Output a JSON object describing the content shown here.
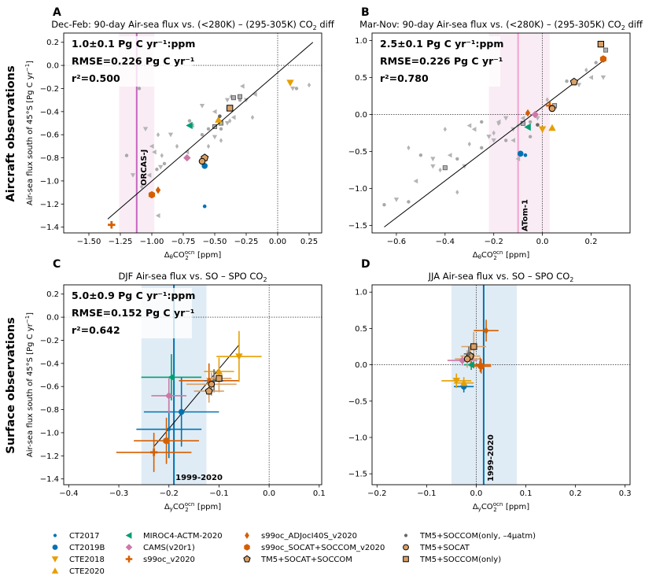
{
  "colors": {
    "black": "#000000",
    "gray": "#a0a0a0",
    "darkgray": "#666666",
    "blue": "#0072b2",
    "orange": "#e69f00",
    "green": "#009e73",
    "pink": "#cc79a7",
    "vermillion": "#d55e00",
    "tan": "#d9a066",
    "lightblue": "#d5e6f2",
    "lightpink": "#f6e4f0",
    "magenta_line": "#c765c0",
    "pink_line": "#f5a2d0"
  },
  "row_labels": [
    "Aircraft observations",
    "Surface observations"
  ],
  "chart_data": [
    {
      "id": "A",
      "type": "scatter",
      "letter": "A",
      "title": "Dec-Feb: 90-day Air-sea flux vs. (<280K) – (295-305K) CO",
      "title_sub": "2",
      "title_tail": " diff",
      "xlabel": "Δ",
      "ylabel": "Air-sea flux south of 45°S [Pg C yr",
      "xlim": [
        -1.7,
        0.35
      ],
      "ylim": [
        -1.45,
        0.28
      ],
      "xticks": [
        -1.5,
        -1.25,
        -1.0,
        -0.75,
        -0.5,
        -0.25,
        0.0,
        0.25
      ],
      "xticklabels": [
        "−1.50",
        "−1.25",
        "−1.00",
        "−0.75",
        "−0.50",
        "−0.25",
        "0.00",
        "0.25"
      ],
      "yticks": [
        -1.4,
        -1.2,
        -1.0,
        -0.8,
        -0.6,
        -0.4,
        -0.2,
        0.0,
        0.2
      ],
      "yticklabels": [
        "−1.4",
        "−1.2",
        "−1.0",
        "−0.8",
        "−0.6",
        "−0.4",
        "−0.2",
        "0.0",
        "0.2"
      ],
      "stats": [
        "1.0±0.1 Pg C yr⁻¹:ppm",
        "RMSE=0.226 Pg C yr⁻¹",
        "r²=0.500"
      ],
      "obs_line": {
        "x": -1.12,
        "band": [
          -1.26,
          -0.98
        ],
        "label": "ORCAS-J"
      },
      "fit": [
        [
          -1.35,
          -1.33
        ],
        [
          0.28,
          0.2
        ]
      ],
      "gray_points": [
        [
          -1.1,
          -0.2
        ],
        [
          -1.05,
          -0.55
        ],
        [
          -0.95,
          -0.6
        ],
        [
          -0.98,
          -0.75
        ],
        [
          -0.9,
          -0.85
        ],
        [
          -0.85,
          -0.6
        ],
        [
          -0.8,
          -0.7
        ],
        [
          -0.72,
          -0.75
        ],
        [
          -0.7,
          -0.48
        ],
        [
          -0.6,
          -0.35
        ],
        [
          -0.55,
          -0.7
        ],
        [
          -0.5,
          -0.4
        ],
        [
          -0.45,
          -0.55
        ],
        [
          -0.4,
          -0.5
        ],
        [
          -0.38,
          -0.48
        ],
        [
          -0.35,
          -0.45
        ],
        [
          -0.3,
          -0.3
        ],
        [
          -0.25,
          -0.3
        ],
        [
          -0.2,
          -0.45
        ],
        [
          -0.18,
          -0.25
        ],
        [
          -1.2,
          -0.78
        ],
        [
          -1.15,
          -0.95
        ],
        [
          -1.08,
          -1.05
        ],
        [
          -1.02,
          -0.95
        ],
        [
          -0.96,
          -0.9
        ],
        [
          -0.93,
          -0.88
        ],
        [
          -0.92,
          -0.78
        ],
        [
          -0.68,
          -0.52
        ],
        [
          -0.6,
          -0.6
        ],
        [
          -0.5,
          -0.62
        ],
        [
          -0.45,
          -0.65
        ],
        [
          -0.28,
          -0.18
        ],
        [
          0.15,
          -0.2
        ],
        [
          0.12,
          -0.2
        ],
        [
          0.25,
          -0.17
        ],
        [
          -1.0,
          -0.7
        ],
        [
          -0.55,
          -0.55
        ],
        [
          -0.4,
          -0.3
        ],
        [
          -0.37,
          -0.27
        ],
        [
          -0.95,
          -1.3
        ]
      ],
      "gray_squares": [
        [
          -0.35,
          -0.28
        ],
        [
          -0.3,
          -0.27
        ],
        [
          -0.45,
          -0.5
        ],
        [
          -0.5,
          -0.53
        ]
      ],
      "colored": [
        {
          "x": -1.32,
          "y": -1.38,
          "marker": "plus",
          "color": "vermillion"
        },
        {
          "x": -1.0,
          "y": -1.12,
          "marker": "hexagon",
          "color": "vermillion"
        },
        {
          "x": -0.95,
          "y": -1.08,
          "marker": "diamond_small",
          "color": "vermillion"
        },
        {
          "x": -0.58,
          "y": -0.87,
          "marker": "circle",
          "color": "blue"
        },
        {
          "x": -0.58,
          "y": -1.22,
          "marker": "dot",
          "color": "blue"
        },
        {
          "x": -0.72,
          "y": -0.8,
          "marker": "diamond",
          "color": "pink"
        },
        {
          "x": -0.7,
          "y": -0.52,
          "marker": "triangle_left",
          "color": "green"
        },
        {
          "x": -0.47,
          "y": -0.47,
          "marker": "triangle_up",
          "color": "orange"
        },
        {
          "x": 0.1,
          "y": -0.15,
          "marker": "triangle_down",
          "color": "orange"
        },
        {
          "x": -0.58,
          "y": -0.8,
          "marker": "pentagon",
          "color": "tan"
        },
        {
          "x": -0.6,
          "y": -0.83,
          "marker": "circle_outlined",
          "color": "tan"
        },
        {
          "x": -0.38,
          "y": -0.37,
          "marker": "square",
          "color": "tan"
        },
        {
          "x": -0.46,
          "y": -0.44,
          "marker": "dot",
          "color": "darkgray"
        }
      ]
    },
    {
      "id": "B",
      "type": "scatter",
      "letter": "B",
      "title": "Mar-Nov: 90-day Air-sea flux vs. (<280K) – (295-305K) CO",
      "title_sub": "2",
      "title_tail": " diff",
      "xlabel": "Δ",
      "ylabel": "",
      "xlim": [
        -0.7,
        0.36
      ],
      "ylim": [
        -1.6,
        1.1
      ],
      "xticks": [
        -0.6,
        -0.4,
        -0.2,
        0.0,
        0.2
      ],
      "xticklabels": [
        "−0.6",
        "−0.4",
        "−0.2",
        "0.0",
        "0.2"
      ],
      "yticks": [
        -1.5,
        -1.0,
        -0.5,
        0.0,
        0.5,
        1.0
      ],
      "yticklabels": [
        "−1.5",
        "−1.0",
        "−0.5",
        "0.0",
        "0.5",
        "1.0"
      ],
      "stats": [
        "2.5±0.1 Pg C yr⁻¹:ppm",
        "RMSE=0.226 Pg C yr⁻¹",
        "r²=0.780"
      ],
      "obs_line": {
        "x": -0.1,
        "band": [
          -0.22,
          0.03
        ],
        "label": "ATom-1"
      },
      "fit": [
        [
          -0.65,
          -1.52
        ],
        [
          0.26,
          0.75
        ]
      ],
      "gray_points": [
        [
          -0.65,
          -1.22
        ],
        [
          -0.6,
          -1.15
        ],
        [
          -0.55,
          -0.45
        ],
        [
          -0.52,
          -0.9
        ],
        [
          -0.5,
          -0.55
        ],
        [
          -0.45,
          -0.6
        ],
        [
          -0.42,
          -0.75
        ],
        [
          -0.38,
          -0.55
        ],
        [
          -0.35,
          -0.6
        ],
        [
          -0.32,
          -0.7
        ],
        [
          -0.3,
          -0.4
        ],
        [
          -0.28,
          -0.2
        ],
        [
          -0.25,
          -0.45
        ],
        [
          -0.22,
          -0.3
        ],
        [
          -0.2,
          -0.25
        ],
        [
          -0.18,
          -0.1
        ],
        [
          -0.15,
          -0.35
        ],
        [
          -0.12,
          -0.2
        ],
        [
          -0.1,
          -0.15
        ],
        [
          -0.08,
          -0.05
        ],
        [
          -0.05,
          -0.1
        ],
        [
          -0.02,
          -0.05
        ],
        [
          0.02,
          0.2
        ],
        [
          0.05,
          0.1
        ],
        [
          0.1,
          0.45
        ],
        [
          0.15,
          0.4
        ],
        [
          0.18,
          0.6
        ],
        [
          0.2,
          0.5
        ],
        [
          0.22,
          0.7
        ],
        [
          0.25,
          0.5
        ],
        [
          -0.4,
          -0.2
        ],
        [
          -0.3,
          -0.15
        ],
        [
          -0.25,
          -0.1
        ],
        [
          -0.15,
          -0.05
        ],
        [
          -0.18,
          -0.12
        ],
        [
          -0.12,
          -0.35
        ],
        [
          -0.05,
          -0.3
        ],
        [
          -0.2,
          -0.35
        ],
        [
          -0.35,
          -1.05
        ],
        [
          -0.1,
          -0.6
        ],
        [
          -0.55,
          -1.18
        ],
        [
          -0.45,
          -0.7
        ]
      ],
      "gray_squares": [
        [
          -0.08,
          -0.12
        ],
        [
          0.26,
          0.87
        ],
        [
          0.05,
          0.12
        ],
        [
          -0.4,
          -0.72
        ]
      ],
      "colored": [
        {
          "x": -0.09,
          "y": -0.53,
          "marker": "circle",
          "color": "blue"
        },
        {
          "x": -0.07,
          "y": -0.55,
          "marker": "dot",
          "color": "blue"
        },
        {
          "x": -0.06,
          "y": -0.17,
          "marker": "triangle_left",
          "color": "green"
        },
        {
          "x": -0.03,
          "y": 0.0,
          "marker": "diamond",
          "color": "pink"
        },
        {
          "x": -0.06,
          "y": 0.02,
          "marker": "diamond_small",
          "color": "vermillion"
        },
        {
          "x": 0.0,
          "y": -0.2,
          "marker": "triangle_down",
          "color": "orange"
        },
        {
          "x": 0.04,
          "y": -0.18,
          "marker": "triangle_up",
          "color": "orange"
        },
        {
          "x": 0.03,
          "y": 0.12,
          "marker": "plus",
          "color": "vermillion"
        },
        {
          "x": 0.25,
          "y": 0.75,
          "marker": "hexagon",
          "color": "vermillion"
        },
        {
          "x": 0.13,
          "y": 0.44,
          "marker": "pentagon",
          "color": "tan"
        },
        {
          "x": 0.04,
          "y": 0.08,
          "marker": "circle_outlined",
          "color": "tan"
        },
        {
          "x": 0.24,
          "y": 0.95,
          "marker": "square",
          "color": "tan"
        },
        {
          "x": -0.02,
          "y": -0.14,
          "marker": "dot",
          "color": "darkgray"
        }
      ]
    },
    {
      "id": "C",
      "type": "scatter",
      "letter": "C",
      "title": "DJF Air-sea flux vs. SO – SPO CO",
      "title_sub": "2",
      "title_tail": "",
      "xlabel": "Δ",
      "ylabel": "Air-sea flux south of 45°S [Pg C yr",
      "xlim": [
        -0.41,
        0.105
      ],
      "ylim": [
        -1.45,
        0.28
      ],
      "xticks": [
        -0.4,
        -0.3,
        -0.2,
        -0.1,
        0.0,
        0.1
      ],
      "xticklabels": [
        "−0.4",
        "−0.3",
        "−0.2",
        "−0.1",
        "0.0",
        "0.1"
      ],
      "yticks": [
        -1.4,
        -1.2,
        -1.0,
        -0.8,
        -0.6,
        -0.4,
        -0.2,
        0.0,
        0.2
      ],
      "yticklabels": [
        "−1.4",
        "−1.2",
        "−1.0",
        "−0.8",
        "−0.6",
        "−0.4",
        "−0.2",
        "0.0",
        "0.2"
      ],
      "stats": [
        "5.0±0.9 Pg C yr⁻¹:ppm",
        "RMSE=0.152 Pg C yr⁻¹",
        "r²=0.642"
      ],
      "obs_line": {
        "x": -0.19,
        "band": [
          -0.255,
          -0.125
        ],
        "label": "1999-2020"
      },
      "fit": [
        [
          -0.23,
          -1.12
        ],
        [
          -0.06,
          -0.24
        ]
      ],
      "colored": [
        {
          "x": -0.175,
          "y": -0.82,
          "marker": "circle",
          "color": "blue",
          "ex": 0.075,
          "ey": 0.3
        },
        {
          "x": -0.2,
          "y": -0.97,
          "marker": "dot",
          "color": "blue",
          "ex": 0.065,
          "ey": 0.25
        },
        {
          "x": -0.195,
          "y": -0.52,
          "marker": "triangle_left",
          "color": "green",
          "ex": 0.06,
          "ey": 0.2
        },
        {
          "x": -0.2,
          "y": -0.68,
          "marker": "diamond",
          "color": "pink",
          "ex": 0.035,
          "ey": 0.15
        },
        {
          "x": -0.205,
          "y": -1.07,
          "marker": "hexagon",
          "color": "vermillion",
          "ex": 0.065,
          "ey": 0.2
        },
        {
          "x": -0.23,
          "y": -1.17,
          "marker": "plus",
          "color": "vermillion",
          "ex": 0.075,
          "ey": 0.17
        },
        {
          "x": -0.12,
          "y": -0.55,
          "marker": "diamond_small",
          "color": "vermillion",
          "ex": 0.06,
          "ey": 0.15
        },
        {
          "x": -0.06,
          "y": -0.34,
          "marker": "triangle_down",
          "color": "orange",
          "ex": 0.045,
          "ey": 0.22
        },
        {
          "x": -0.1,
          "y": -0.47,
          "marker": "triangle_up",
          "color": "orange",
          "ex": 0.03,
          "ey": 0.12
        },
        {
          "x": -0.11,
          "y": -0.55,
          "marker": "dot",
          "color": "darkgray",
          "ex": 0.02,
          "ey": 0.1
        },
        {
          "x": -0.12,
          "y": -0.64,
          "marker": "pentagon",
          "color": "tan",
          "ex": 0.03,
          "ey": 0.1
        },
        {
          "x": -0.115,
          "y": -0.58,
          "marker": "circle_outlined",
          "color": "tan",
          "ex": 0.05,
          "ey": 0.1
        },
        {
          "x": -0.1,
          "y": -0.53,
          "marker": "square",
          "color": "tan",
          "ex": 0.025,
          "ey": 0.12
        }
      ]
    },
    {
      "id": "D",
      "type": "scatter",
      "letter": "D",
      "title": "JJA Air-sea flux vs. SO – SPO CO",
      "title_sub": "2",
      "title_tail": "",
      "xlabel": "Δ",
      "ylabel": "",
      "xlim": [
        -0.21,
        0.31
      ],
      "ylim": [
        -1.65,
        1.1
      ],
      "xticks": [
        -0.2,
        -0.1,
        0.0,
        0.1,
        0.2,
        0.3
      ],
      "xticklabels": [
        "−0.2",
        "−0.1",
        "0.0",
        "0.1",
        "0.2",
        "0.3"
      ],
      "yticks": [
        -1.5,
        -1.0,
        -0.5,
        0.0,
        0.5,
        1.0
      ],
      "yticklabels": [
        "−1.5",
        "−1.0",
        "−0.5",
        "0.0",
        "0.5",
        "1.0"
      ],
      "stats": [],
      "obs_line": {
        "x": 0.015,
        "band": [
          -0.05,
          0.082
        ],
        "label": "1999-2020"
      },
      "fit": null,
      "colored": [
        {
          "x": -0.025,
          "y": -0.3,
          "marker": "circle",
          "color": "blue",
          "ex": 0.02,
          "ey": 0.08
        },
        {
          "x": -0.01,
          "y": 0.0,
          "marker": "triangle_left",
          "color": "green",
          "ex": 0.015,
          "ey": 0.07
        },
        {
          "x": -0.028,
          "y": 0.06,
          "marker": "diamond",
          "color": "pink",
          "ex": 0.03,
          "ey": 0.07
        },
        {
          "x": 0.01,
          "y": -0.02,
          "marker": "hexagon",
          "color": "vermillion",
          "ex": 0.02,
          "ey": 0.1
        },
        {
          "x": 0.008,
          "y": 0.0,
          "marker": "plus",
          "color": "vermillion",
          "ex": 0.022,
          "ey": 0.1
        },
        {
          "x": 0.02,
          "y": 0.47,
          "marker": "diamond_small",
          "color": "vermillion",
          "ex": 0.025,
          "ey": 0.15
        },
        {
          "x": -0.04,
          "y": -0.22,
          "marker": "triangle_down",
          "color": "orange",
          "ex": 0.03,
          "ey": 0.1
        },
        {
          "x": -0.025,
          "y": -0.25,
          "marker": "triangle_up",
          "color": "orange",
          "ex": 0.02,
          "ey": 0.08
        },
        {
          "x": -0.012,
          "y": 0.12,
          "marker": "pentagon",
          "color": "tan",
          "ex": 0.02,
          "ey": 0.15
        },
        {
          "x": -0.018,
          "y": 0.08,
          "marker": "circle_outlined",
          "color": "tan",
          "ex": 0.025,
          "ey": 0.12
        },
        {
          "x": -0.005,
          "y": 0.25,
          "marker": "square",
          "color": "tan",
          "ex": 0.025,
          "ey": 0.2
        },
        {
          "x": -0.015,
          "y": 0.15,
          "marker": "dot",
          "color": "darkgray",
          "ex": 0.01,
          "ey": 0.1
        }
      ]
    }
  ],
  "legend": [
    {
      "label": "CT2017",
      "marker": "dot",
      "color": "blue"
    },
    {
      "label": "CT2019B",
      "marker": "circle",
      "color": "blue"
    },
    {
      "label": "CTE2018",
      "marker": "triangle_down",
      "color": "orange"
    },
    {
      "label": "CTE2020",
      "marker": "triangle_up",
      "color": "orange"
    },
    {
      "label": "MIROC4-ACTM-2020",
      "marker": "triangle_left",
      "color": "green"
    },
    {
      "label": "CAMS(v20r1)",
      "marker": "diamond",
      "color": "pink"
    },
    {
      "label": "s99oc_v2020",
      "marker": "plus",
      "color": "vermillion"
    },
    {
      "label": "s99oc_ADJocI40S_v2020",
      "marker": "diamond_small",
      "color": "vermillion"
    },
    {
      "label": "s99oc_SOCAT+SOCCOM_v2020",
      "marker": "hexagon",
      "color": "vermillion"
    },
    {
      "label": "TM5+SOCAT+SOCCOM",
      "marker": "pentagon",
      "color": "tan"
    },
    {
      "label": "TM5+SOCCOM(only, –4μatm)",
      "marker": "dot",
      "color": "darkgray"
    },
    {
      "label": "TM5+SOCAT",
      "marker": "circle_outlined",
      "color": "tan"
    },
    {
      "label": "TM5+SOCCOM(only)",
      "marker": "square",
      "color": "tan"
    }
  ]
}
